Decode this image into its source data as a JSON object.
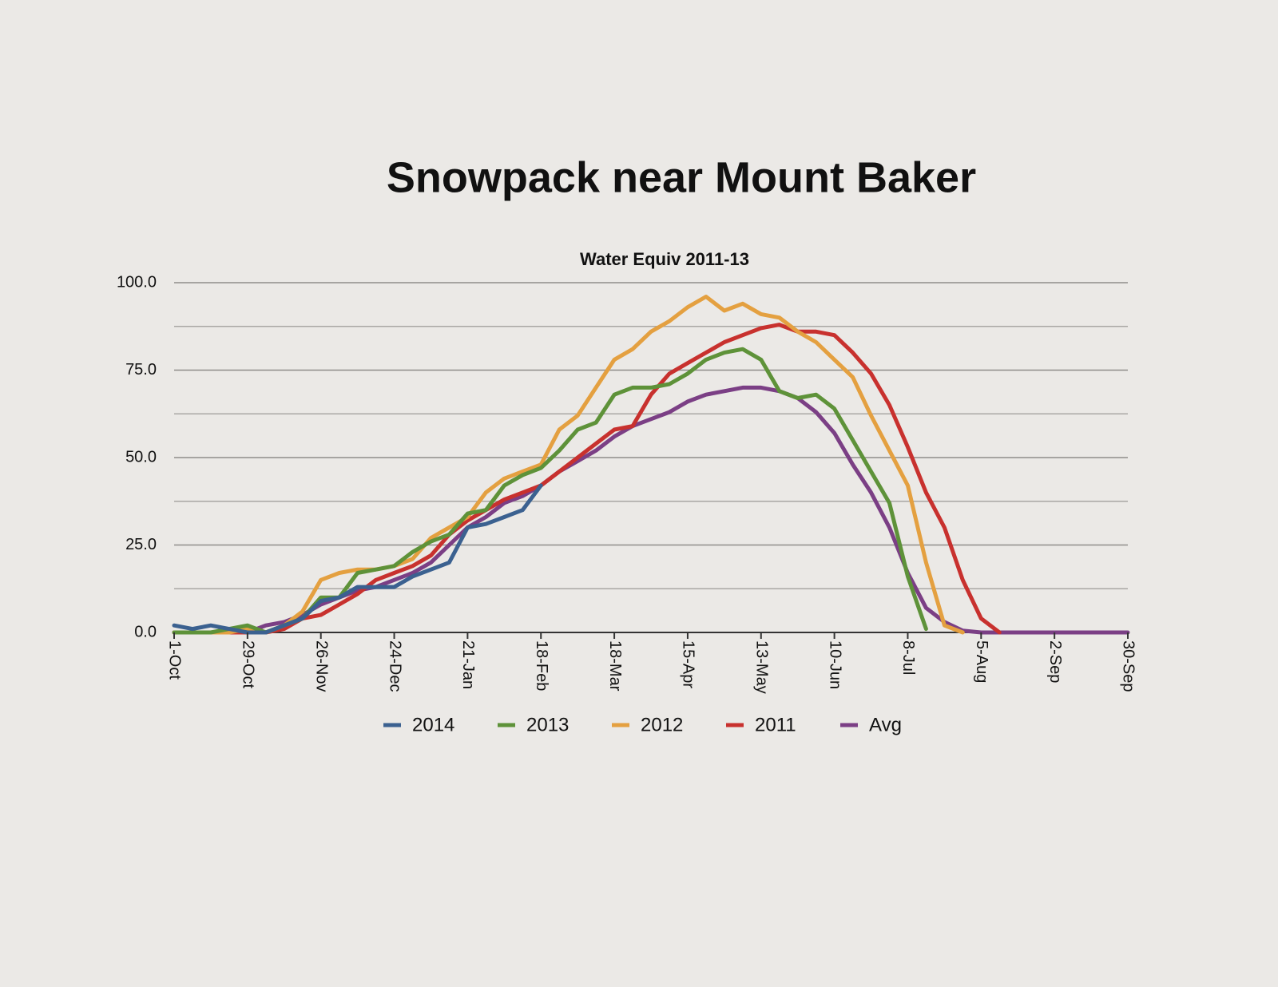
{
  "chart_data": {
    "type": "line",
    "title": "Snowpack near Mount Baker",
    "subtitle": "Water Equiv 2011-13",
    "categories": [
      "1-Oct",
      null,
      null,
      null,
      "29-Oct",
      null,
      null,
      null,
      "26-Nov",
      null,
      null,
      null,
      "24-Dec",
      null,
      null,
      null,
      "21-Jan",
      null,
      null,
      null,
      "18-Feb",
      null,
      null,
      null,
      "18-Mar",
      null,
      null,
      null,
      "15-Apr",
      null,
      null,
      null,
      "13-May",
      null,
      null,
      null,
      "10-Jun",
      null,
      null,
      null,
      "8-Jul",
      null,
      null,
      null,
      "5-Aug",
      null,
      null,
      null,
      "2-Sep",
      null,
      null,
      null,
      "30-Sep"
    ],
    "ylim": [
      0,
      100
    ],
    "yticks": [
      {
        "value": 0,
        "label": "0.0"
      },
      {
        "value": 25,
        "label": "25.0"
      },
      {
        "value": 50,
        "label": "50.0"
      },
      {
        "value": 75,
        "label": "75.0"
      },
      {
        "value": 100,
        "label": "100.0"
      }
    ],
    "minor_yticks": [
      12.5,
      37.5,
      62.5,
      87.5
    ],
    "grid": true,
    "legend": "bottom",
    "series": [
      {
        "name": "2014",
        "color": "#3b6190",
        "values": [
          2,
          1,
          2,
          1,
          0,
          0,
          2,
          4,
          9,
          10,
          13,
          13,
          13,
          16,
          18,
          20,
          30,
          31,
          33,
          35,
          42,
          null,
          null,
          null,
          null,
          null,
          null,
          null,
          null,
          null,
          null,
          null,
          null,
          null,
          null,
          null,
          null,
          null,
          null,
          null,
          null,
          null,
          null,
          null,
          null,
          null,
          null,
          null,
          null,
          null,
          null,
          null,
          null
        ]
      },
      {
        "name": "2013",
        "color": "#5e9239",
        "values": [
          0,
          0,
          0,
          1,
          2,
          0,
          2,
          4,
          10,
          10,
          17,
          18,
          19,
          23,
          26,
          28,
          34,
          35,
          42,
          45,
          47,
          52,
          58,
          60,
          68,
          70,
          70,
          71,
          74,
          78,
          80,
          81,
          78,
          69,
          67,
          68,
          64,
          55,
          46,
          37,
          16,
          1,
          null,
          null,
          null,
          null,
          null,
          null,
          null,
          null,
          null,
          null,
          null
        ]
      },
      {
        "name": "2012",
        "color": "#e4a040",
        "values": [
          0,
          0,
          0,
          0,
          1,
          0,
          2,
          6,
          15,
          17,
          18,
          18,
          19,
          21,
          27,
          30,
          33,
          40,
          44,
          46,
          48,
          58,
          62,
          70,
          78,
          81,
          86,
          89,
          93,
          96,
          92,
          94,
          91,
          90,
          86,
          83,
          78,
          73,
          62,
          52,
          42,
          20,
          2,
          0,
          null,
          null,
          null,
          null,
          null,
          null,
          null,
          null,
          null
        ]
      },
      {
        "name": "2011",
        "color": "#c8312e",
        "values": [
          0,
          0,
          0,
          0,
          0,
          0,
          1,
          4,
          5,
          8,
          11,
          15,
          17,
          19,
          22,
          28,
          32,
          35,
          38,
          40,
          42,
          46,
          50,
          54,
          58,
          59,
          68,
          74,
          77,
          80,
          83,
          85,
          87,
          88,
          86,
          86,
          85,
          80,
          74,
          65,
          53,
          40,
          30,
          15,
          4,
          0,
          null,
          null,
          null,
          null,
          null,
          null,
          null
        ]
      },
      {
        "name": "Avg",
        "color": "#7b3f85",
        "values": [
          0,
          0,
          0,
          0,
          0,
          2,
          3,
          5,
          8,
          10,
          12,
          13,
          15,
          17,
          20,
          25,
          30,
          33,
          37,
          39,
          42,
          46,
          49,
          52,
          56,
          59,
          61,
          63,
          66,
          68,
          69,
          70,
          70,
          69,
          67,
          63,
          57,
          48,
          40,
          30,
          17,
          7,
          3,
          0.5,
          0,
          0,
          0,
          0,
          0,
          0,
          0,
          0,
          0
        ]
      }
    ]
  }
}
